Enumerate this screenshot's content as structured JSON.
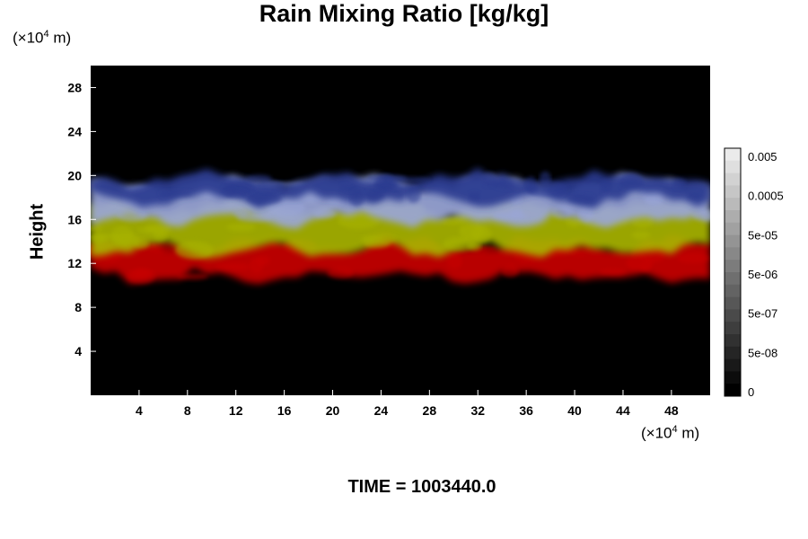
{
  "chart_data": {
    "type": "heatmap",
    "title": "Rain Mixing Ratio [kg/kg]",
    "ylabel": "Height",
    "x_unit": {
      "prefix": "(×10",
      "exponent": "4",
      "suffix": " m)"
    },
    "y_unit": {
      "prefix": "(×10",
      "exponent": "4",
      "suffix": " m)"
    },
    "xlim": [
      0,
      51.2
    ],
    "ylim": [
      0,
      30
    ],
    "x_ticks": [
      {
        "value": 4,
        "label": "4"
      },
      {
        "value": 8,
        "label": "8"
      },
      {
        "value": 12,
        "label": "12"
      },
      {
        "value": 16,
        "label": "16"
      },
      {
        "value": 20,
        "label": "20"
      },
      {
        "value": 24,
        "label": "24"
      },
      {
        "value": 28,
        "label": "28"
      },
      {
        "value": 32,
        "label": "32"
      },
      {
        "value": 36,
        "label": "36"
      },
      {
        "value": 40,
        "label": "40"
      },
      {
        "value": 44,
        "label": "44"
      },
      {
        "value": 48,
        "label": "48"
      }
    ],
    "y_ticks": [
      {
        "value": 4,
        "label": "4"
      },
      {
        "value": 8,
        "label": "8"
      },
      {
        "value": 12,
        "label": "12"
      },
      {
        "value": 16,
        "label": "16"
      },
      {
        "value": 20,
        "label": "20"
      },
      {
        "value": 24,
        "label": "24"
      },
      {
        "value": 28,
        "label": "28"
      }
    ],
    "colorbar": {
      "labels": [
        "0.005",
        "0.0005",
        "5e-05",
        "5e-06",
        "5e-07",
        "5e-08",
        "0"
      ],
      "levels": 20
    },
    "annotation": "TIME = 1003440.0",
    "approx_layers": [
      {
        "name": "red",
        "color": "#c80000",
        "y_bottom": 10.8,
        "y_top": 13.8
      },
      {
        "name": "yellow-green",
        "color": "#a8b400",
        "y_bottom": 13.2,
        "y_top": 17.2
      },
      {
        "name": "light-blue",
        "color": "#9aa6d8",
        "y_bottom": 16.0,
        "y_top": 19.4
      },
      {
        "name": "blue",
        "color": "#2a3a90",
        "y_bottom": 17.8,
        "y_top": 19.8
      }
    ],
    "background_color": "#000000"
  }
}
